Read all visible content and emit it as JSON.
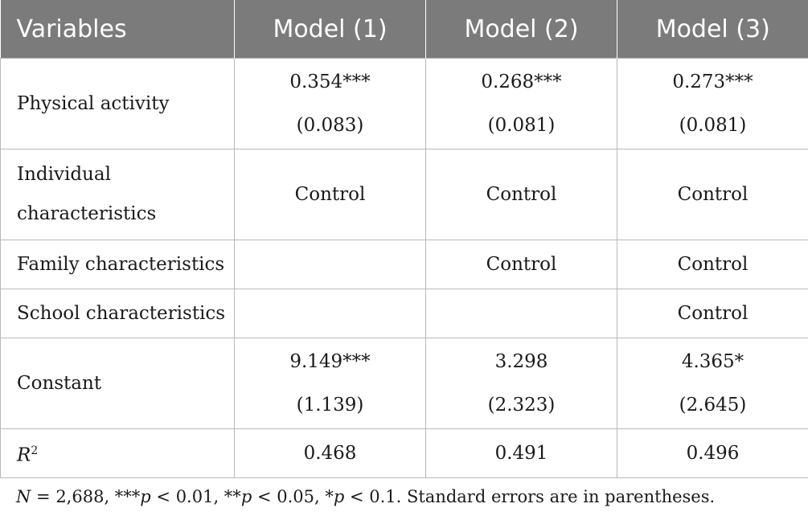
{
  "table": {
    "headers": [
      "Variables",
      "Model (1)",
      "Model (2)",
      "Model (3)"
    ],
    "rows": [
      {
        "label": "Physical activity",
        "cells": [
          {
            "coef": "0.354***",
            "se": "(0.083)"
          },
          {
            "coef": "0.268***",
            "se": "(0.081)"
          },
          {
            "coef": "0.273***",
            "se": "(0.081)"
          }
        ]
      },
      {
        "label_line1": "Individual",
        "label_line2": "characteristics",
        "cells": [
          "Control",
          "Control",
          "Control"
        ]
      },
      {
        "label": "Family characteristics",
        "cells": [
          "",
          "Control",
          "Control"
        ]
      },
      {
        "label": "School characteristics",
        "cells": [
          "",
          "",
          "Control"
        ]
      },
      {
        "label": "Constant",
        "cells": [
          {
            "coef": "9.149***",
            "se": "(1.139)"
          },
          {
            "coef": "3.298",
            "se": "(2.323)"
          },
          {
            "coef": "4.365*",
            "se": "(2.645)"
          }
        ]
      },
      {
        "label_main": "R",
        "label_sup": "2",
        "cells": [
          "0.468",
          "0.491",
          "0.496"
        ]
      }
    ]
  },
  "footnote": {
    "n_var": "N",
    "n_text": " = 2,688, ***",
    "p1": "p",
    "t1": " < 0.01, **",
    "p2": "p",
    "t2": " < 0.05, *",
    "p3": "p",
    "t3": " < 0.1. Standard errors are in parentheses."
  }
}
